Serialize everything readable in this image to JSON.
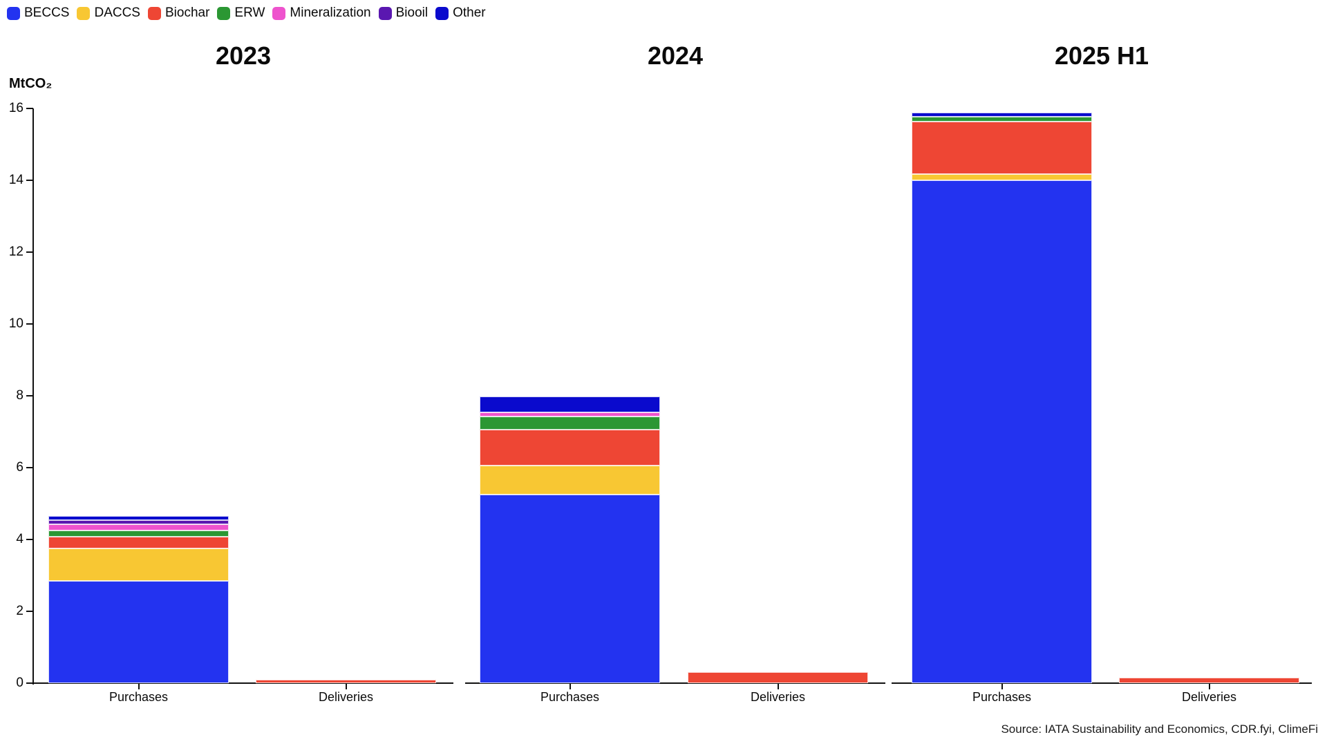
{
  "legend": {
    "items": [
      {
        "label": "BECCS",
        "color": "#2333f0"
      },
      {
        "label": "DACCS",
        "color": "#f8c733"
      },
      {
        "label": "Biochar",
        "color": "#ee4634"
      },
      {
        "label": "ERW",
        "color": "#2b9733"
      },
      {
        "label": "Mineralization",
        "color": "#ee53cd"
      },
      {
        "label": "Biooil",
        "color": "#5a17b0"
      },
      {
        "label": "Other",
        "color": "#0a0acd"
      }
    ]
  },
  "y_axis": {
    "label": "MtCO₂",
    "ticks": [
      0,
      2,
      4,
      6,
      8,
      10,
      12,
      14,
      16
    ],
    "max": 16
  },
  "source": "Source: IATA Sustainability and Economics, CDR.fyi, ClimeFi",
  "chart_data": [
    {
      "type": "bar",
      "stacked": true,
      "title": "2023",
      "categories": [
        "Purchases",
        "Deliveries"
      ],
      "series": [
        {
          "name": "BECCS",
          "values": [
            2.85,
            0
          ]
        },
        {
          "name": "DACCS",
          "values": [
            0.9,
            0
          ]
        },
        {
          "name": "Biochar",
          "values": [
            0.33,
            0.1
          ]
        },
        {
          "name": "ERW",
          "values": [
            0.17,
            0
          ]
        },
        {
          "name": "Mineralization",
          "values": [
            0.17,
            0
          ]
        },
        {
          "name": "Biooil",
          "values": [
            0.12,
            0
          ]
        },
        {
          "name": "Other",
          "values": [
            0.11,
            0
          ]
        }
      ],
      "ylabel": "MtCO₂",
      "ylim": [
        0,
        16
      ],
      "grid": false,
      "legend_position": "top-left"
    },
    {
      "type": "bar",
      "stacked": true,
      "title": "2024",
      "categories": [
        "Purchases",
        "Deliveries"
      ],
      "series": [
        {
          "name": "BECCS",
          "values": [
            5.25,
            0
          ]
        },
        {
          "name": "DACCS",
          "values": [
            0.8,
            0
          ]
        },
        {
          "name": "Biochar",
          "values": [
            1.0,
            0.3
          ]
        },
        {
          "name": "ERW",
          "values": [
            0.37,
            0
          ]
        },
        {
          "name": "Mineralization",
          "values": [
            0.12,
            0
          ]
        },
        {
          "name": "Biooil",
          "values": [
            0,
            0
          ]
        },
        {
          "name": "Other",
          "values": [
            0.45,
            0
          ]
        }
      ],
      "ylabel": "MtCO₂",
      "ylim": [
        0,
        16
      ],
      "grid": false,
      "legend_position": "top-left"
    },
    {
      "type": "bar",
      "stacked": true,
      "title": "2025 H1",
      "categories": [
        "Purchases",
        "Deliveries"
      ],
      "series": [
        {
          "name": "BECCS",
          "values": [
            14.0,
            0
          ]
        },
        {
          "name": "DACCS",
          "values": [
            0.18,
            0
          ]
        },
        {
          "name": "Biochar",
          "values": [
            1.45,
            0.15
          ]
        },
        {
          "name": "ERW",
          "values": [
            0.13,
            0
          ]
        },
        {
          "name": "Mineralization",
          "values": [
            0,
            0
          ]
        },
        {
          "name": "Biooil",
          "values": [
            0,
            0
          ]
        },
        {
          "name": "Other",
          "values": [
            0.12,
            0
          ]
        }
      ],
      "ylabel": "MtCO₂",
      "ylim": [
        0,
        16
      ],
      "grid": false,
      "legend_position": "top-left"
    }
  ]
}
